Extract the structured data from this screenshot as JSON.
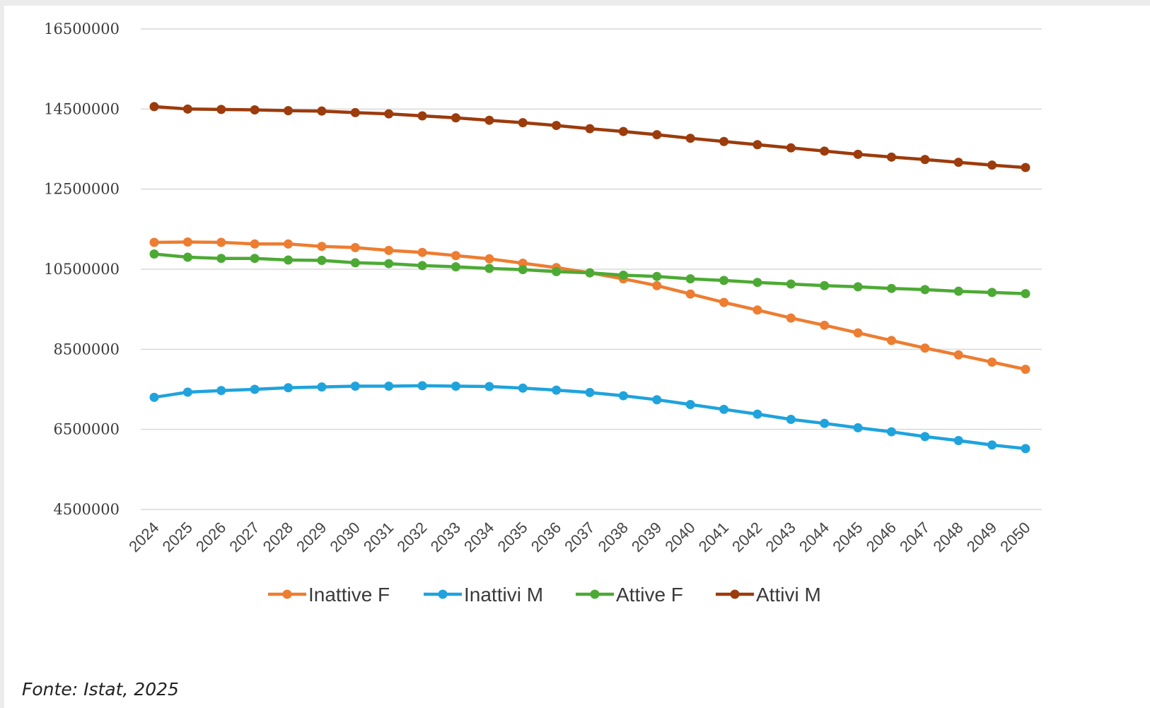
{
  "source_note": "Fonte: Istat, 2025",
  "colors": {
    "Inattive F": "#ed7d31",
    "Inattivi M": "#1fa3dd",
    "Attive F": "#4caa34",
    "Attivi M": "#9c3b0c"
  },
  "chart_data": {
    "type": "line",
    "title": "",
    "xlabel": "",
    "ylabel": "",
    "ylim": [
      4500000,
      16500000
    ],
    "yticks": [
      4500000,
      6500000,
      8500000,
      10500000,
      12500000,
      14500000,
      16500000
    ],
    "ytick_labels": [
      "4500000",
      "6500000",
      "8500000",
      "10500000",
      "12500000",
      "14500000",
      "16500000"
    ],
    "grid": true,
    "legend_position": "bottom",
    "categories": [
      "2024",
      "2025",
      "2026",
      "2027",
      "2028",
      "2029",
      "2030",
      "2031",
      "2032",
      "2033",
      "2034",
      "2035",
      "2036",
      "2037",
      "2038",
      "2039",
      "2040",
      "2041",
      "2042",
      "2043",
      "2044",
      "2045",
      "2046",
      "2047",
      "2048",
      "2049",
      "2050"
    ],
    "series": [
      {
        "name": "Inattive F",
        "values": [
          11170000,
          11180000,
          11170000,
          11130000,
          11130000,
          11070000,
          11040000,
          10970000,
          10920000,
          10840000,
          10760000,
          10650000,
          10540000,
          10410000,
          10260000,
          10090000,
          9880000,
          9670000,
          9480000,
          9280000,
          9100000,
          8910000,
          8720000,
          8530000,
          8360000,
          8180000,
          8000000
        ]
      },
      {
        "name": "Inattivi M",
        "values": [
          7300000,
          7430000,
          7470000,
          7500000,
          7540000,
          7560000,
          7580000,
          7580000,
          7590000,
          7580000,
          7570000,
          7530000,
          7480000,
          7420000,
          7340000,
          7240000,
          7120000,
          7000000,
          6880000,
          6750000,
          6650000,
          6540000,
          6440000,
          6320000,
          6220000,
          6110000,
          6020000
        ]
      },
      {
        "name": "Attive F",
        "values": [
          10880000,
          10800000,
          10770000,
          10770000,
          10730000,
          10720000,
          10660000,
          10640000,
          10590000,
          10560000,
          10520000,
          10490000,
          10440000,
          10410000,
          10350000,
          10320000,
          10260000,
          10220000,
          10170000,
          10130000,
          10090000,
          10060000,
          10020000,
          9990000,
          9950000,
          9920000,
          9890000
        ]
      },
      {
        "name": "Attivi M",
        "values": [
          14560000,
          14500000,
          14490000,
          14480000,
          14460000,
          14450000,
          14410000,
          14380000,
          14330000,
          14280000,
          14220000,
          14160000,
          14090000,
          14010000,
          13940000,
          13860000,
          13770000,
          13690000,
          13610000,
          13530000,
          13450000,
          13370000,
          13300000,
          13240000,
          13170000,
          13100000,
          13040000
        ]
      }
    ]
  }
}
